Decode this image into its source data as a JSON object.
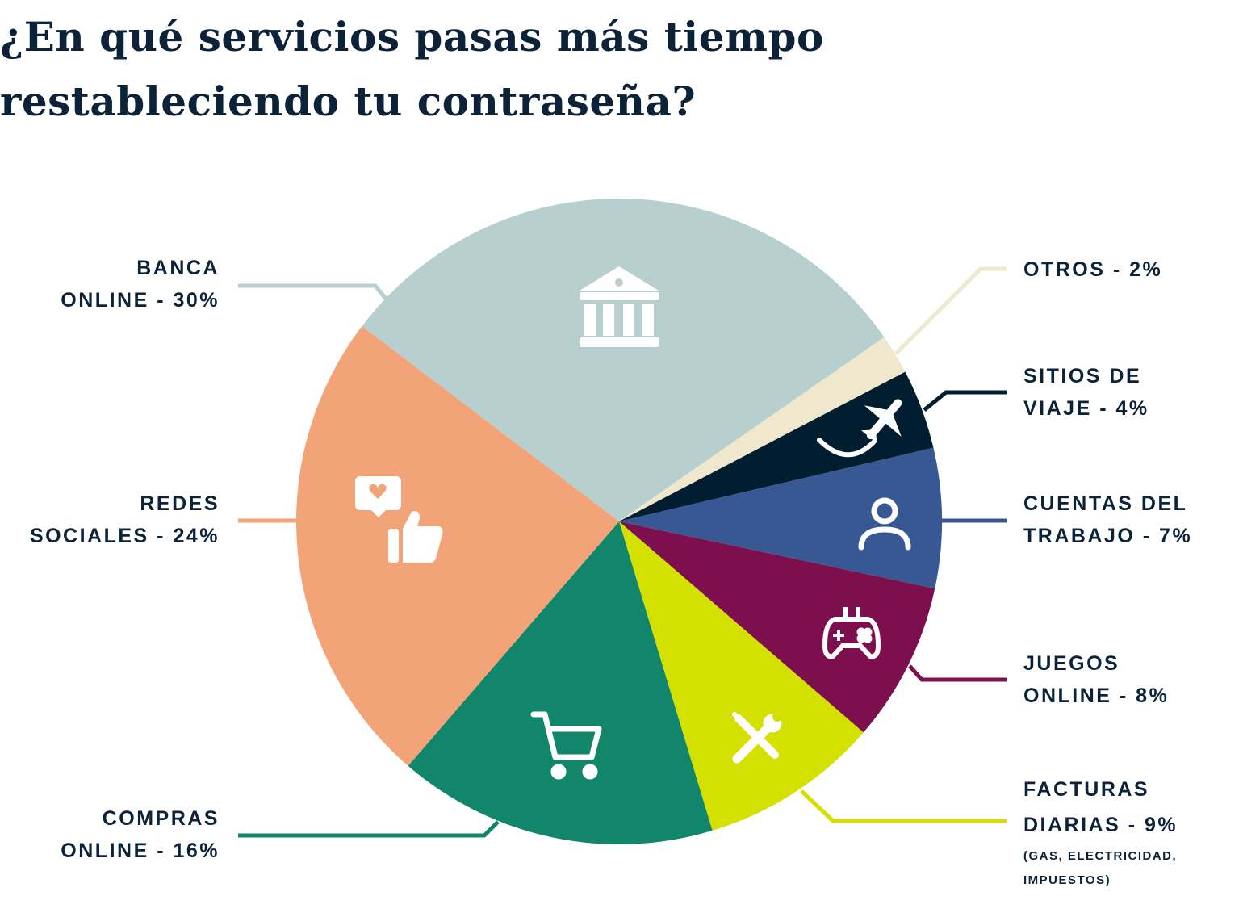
{
  "chart_data": {
    "type": "pie",
    "title": "¿En qué servicios pasas más tiempo restableciendo tu contraseña?",
    "start_angle_deg": -52.8,
    "direction": "clockwise",
    "slices": [
      {
        "label_lines": [
          "BANCA",
          "ONLINE - 30%"
        ],
        "category": "Banca online",
        "value": 30,
        "color": "#b7d0cf",
        "icon": "bank-icon"
      },
      {
        "label_lines": [
          "OTROS - 2%"
        ],
        "category": "Otros",
        "value": 2,
        "color": "#efe8cd",
        "icon": ""
      },
      {
        "label_lines": [
          "SITIOS DE",
          "VIAJE - 4%"
        ],
        "category": "Sitios de viaje",
        "value": 4,
        "color": "#001e30",
        "icon": "airplane-icon"
      },
      {
        "label_lines": [
          "CUENTAS DEL",
          "TRABAJO - 7%"
        ],
        "category": "Cuentas del trabajo",
        "value": 7,
        "color": "#385894",
        "icon": "user-icon"
      },
      {
        "label_lines": [
          "JUEGOS",
          "ONLINE - 8%"
        ],
        "category": "Juegos online",
        "value": 8,
        "color": "#7d0f4e",
        "icon": "gamepad-icon"
      },
      {
        "label_lines": [
          "FACTURAS",
          "DIARIAS - 9%"
        ],
        "sublabel_lines": [
          "(GAS, ELECTRICIDAD,",
          "IMPUESTOS)"
        ],
        "category": "Facturas diarias",
        "value": 9,
        "color": "#d4e000",
        "icon": "tools-icon"
      },
      {
        "label_lines": [
          "COMPRAS",
          "ONLINE - 16%"
        ],
        "category": "Compras online",
        "value": 16,
        "color": "#12866b",
        "icon": "shopping-cart-icon"
      },
      {
        "label_lines": [
          "REDES",
          "SOCIALES - 24%"
        ],
        "category": "Redes sociales",
        "value": 24,
        "color": "#f2a378",
        "icon": "social-like-icon"
      }
    ]
  }
}
